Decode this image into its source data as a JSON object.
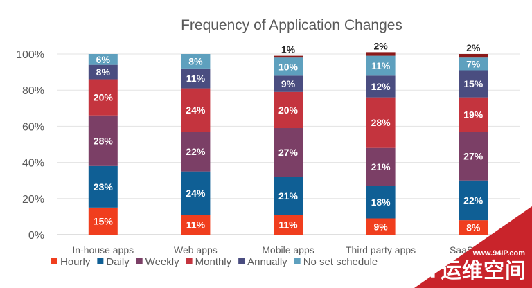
{
  "chart_data": {
    "type": "bar",
    "stacked": true,
    "title": "Frequency of Application Changes",
    "xlabel": "",
    "ylabel": "",
    "ylim": [
      0,
      100
    ],
    "yticks": [
      "0%",
      "20%",
      "40%",
      "60%",
      "80%",
      "100%"
    ],
    "categories": [
      "In-house apps",
      "Web apps",
      "Mobile apps",
      "Third party apps",
      "SaaS apps"
    ],
    "series": [
      {
        "name": "Hourly",
        "color": "#f03e1e",
        "values": [
          15,
          11,
          11,
          9,
          8
        ]
      },
      {
        "name": "Daily",
        "color": "#0f5f95",
        "values": [
          23,
          24,
          21,
          18,
          22
        ]
      },
      {
        "name": "Weekly",
        "color": "#7b3f66",
        "values": [
          28,
          22,
          27,
          21,
          27
        ]
      },
      {
        "name": "Monthly",
        "color": "#c4343e",
        "values": [
          20,
          24,
          20,
          28,
          19
        ]
      },
      {
        "name": "Annually",
        "color": "#4a4d80",
        "values": [
          8,
          11,
          9,
          12,
          15
        ]
      },
      {
        "name": "No set schedule",
        "color": "#5ea0be",
        "values": [
          6,
          8,
          10,
          11,
          7
        ]
      }
    ],
    "extra_segment": {
      "color": "#8b1a1a",
      "values": [
        0,
        0,
        1,
        2,
        2
      ]
    },
    "legend": "bottom"
  },
  "watermark": {
    "url": "www.94IP.com",
    "brand": "IT运维空间"
  }
}
